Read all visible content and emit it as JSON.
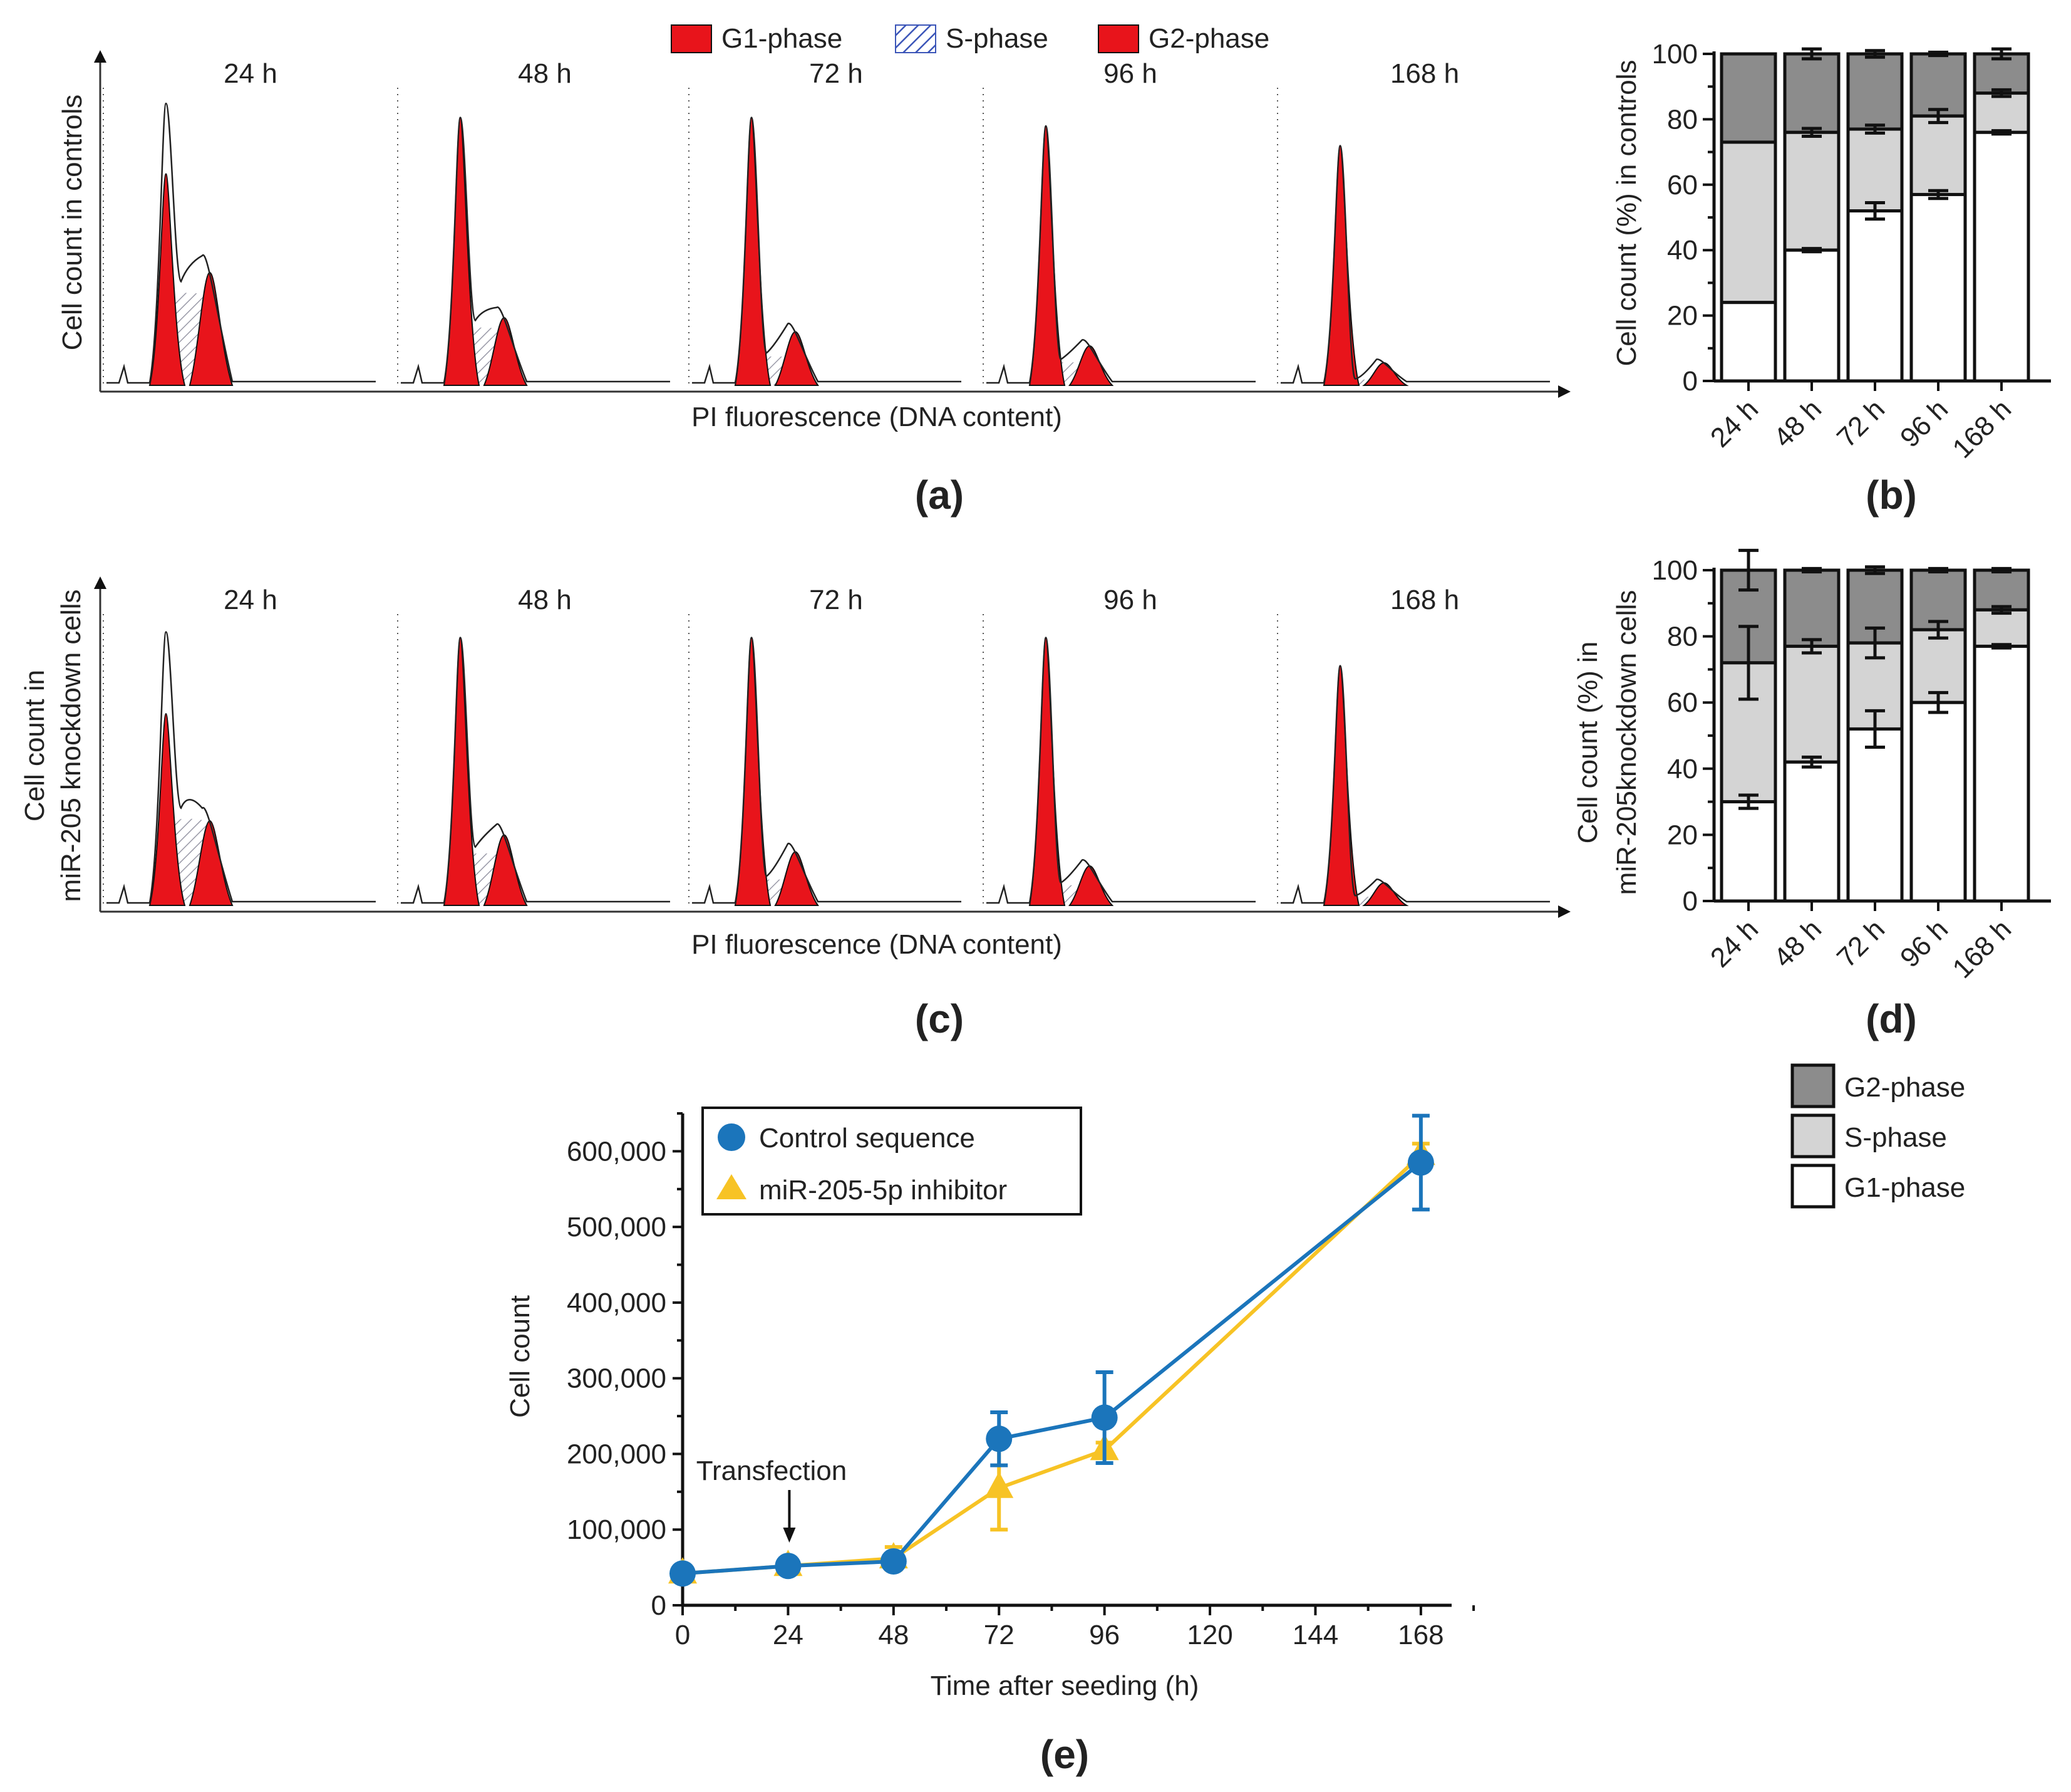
{
  "colors": {
    "g1_red": "#e8141b",
    "s_hatch": "#3b55b8",
    "g2_dark": "#8c8c8c",
    "s_light": "#d4d4d4",
    "g1_white": "#ffffff",
    "control_blue": "#1b75bb",
    "inhibitor_yellow": "#f7c325"
  },
  "histo_legend": {
    "g1": "G1-phase",
    "s": "S-phase",
    "g2": "G2-phase"
  },
  "boxed_legend": {
    "g2": "G2-phase",
    "s": "S-phase",
    "g1": "G1-phase"
  },
  "panels": {
    "a": "(a)",
    "b": "(b)",
    "c": "(c)",
    "d": "(d)",
    "e": "(e)"
  },
  "chart_data": [
    {
      "id": "a",
      "type": "histogram",
      "ylabel": "Cell count in controls",
      "xlabel": "PI fluorescence (DNA content)",
      "subplots": [
        {
          "label": "24 h",
          "g1_peak": 0.75,
          "s_level": 0.32,
          "g2_peak": 0.4,
          "total_peak": 1.0
        },
        {
          "label": "48 h",
          "g1_peak": 0.95,
          "s_level": 0.2,
          "g2_peak": 0.24,
          "total_peak": 0.95
        },
        {
          "label": "72 h",
          "g1_peak": 0.95,
          "s_level": 0.1,
          "g2_peak": 0.19,
          "total_peak": 0.95
        },
        {
          "label": "96 h",
          "g1_peak": 0.92,
          "s_level": 0.08,
          "g2_peak": 0.14,
          "total_peak": 0.92
        },
        {
          "label": "168 h",
          "g1_peak": 0.85,
          "s_level": 0.02,
          "g2_peak": 0.08,
          "total_peak": 0.85
        }
      ]
    },
    {
      "id": "b",
      "type": "stacked-bar",
      "ylabel": "Cell count (%) in controls",
      "categories": [
        "24 h",
        "48 h",
        "72 h",
        "96 h",
        "168 h"
      ],
      "ylim": [
        0,
        100
      ],
      "yticks": [
        "0",
        "20",
        "40",
        "60",
        "80",
        "100"
      ],
      "cumulative_g1": [
        24,
        40,
        52,
        57,
        76
      ],
      "cumulative_s": [
        73,
        76,
        77,
        81,
        88
      ],
      "total": [
        100,
        100,
        100,
        100,
        100
      ],
      "err_g1": [
        0,
        0.5,
        2.5,
        1.2,
        0.5
      ],
      "err_s": [
        0,
        1.2,
        1.2,
        2.0,
        1.0
      ],
      "err_total": [
        0,
        1.5,
        1.0,
        0.5,
        1.5
      ]
    },
    {
      "id": "c",
      "type": "histogram",
      "ylabel_line1": "Cell count in",
      "ylabel_line2": "miR-205 knockdown cells",
      "xlabel": "PI fluorescence (DNA content)",
      "subplots": [
        {
          "label": "24 h",
          "g1_peak": 0.68,
          "s_level": 0.3,
          "g2_peak": 0.3,
          "total_peak": 0.97
        },
        {
          "label": "48 h",
          "g1_peak": 0.95,
          "s_level": 0.18,
          "g2_peak": 0.25,
          "total_peak": 0.95
        },
        {
          "label": "72 h",
          "g1_peak": 0.95,
          "s_level": 0.09,
          "g2_peak": 0.19,
          "total_peak": 0.95
        },
        {
          "label": "96 h",
          "g1_peak": 0.95,
          "s_level": 0.07,
          "g2_peak": 0.14,
          "total_peak": 0.95
        },
        {
          "label": "168 h",
          "g1_peak": 0.85,
          "s_level": 0.03,
          "g2_peak": 0.08,
          "total_peak": 0.85
        }
      ]
    },
    {
      "id": "d",
      "type": "stacked-bar",
      "ylabel_line1": "Cell count (%) in",
      "ylabel_line2": "miR-205knockdown cells",
      "categories": [
        "24 h",
        "48 h",
        "72 h",
        "96 h",
        "168 h"
      ],
      "ylim": [
        0,
        100
      ],
      "yticks": [
        "0",
        "20",
        "40",
        "60",
        "80",
        "100"
      ],
      "cumulative_g1": [
        30,
        42,
        52,
        60,
        77
      ],
      "cumulative_s": [
        72,
        77,
        78,
        82,
        88
      ],
      "total": [
        100,
        100,
        100,
        100,
        100
      ],
      "err_g1": [
        2.0,
        1.5,
        5.5,
        3.0,
        0.5
      ],
      "err_s": [
        11.0,
        2.0,
        4.5,
        2.5,
        1.0
      ],
      "err_total": [
        6.0,
        0.5,
        1.0,
        0.5,
        0.5
      ]
    },
    {
      "id": "e",
      "type": "line",
      "xlabel": "Time after seeding (h)",
      "ylabel": "Cell count",
      "xlim": [
        0,
        175
      ],
      "ylim": [
        0,
        650000
      ],
      "xticks": [
        "0",
        "24",
        "48",
        "72",
        "96",
        "120",
        "144",
        "168"
      ],
      "xtick_values": [
        0,
        24,
        48,
        72,
        96,
        120,
        144,
        168
      ],
      "yticks": [
        "0",
        "100,000",
        "200,000",
        "300,000",
        "400,000",
        "500,000",
        "600,000"
      ],
      "ytick_values": [
        0,
        100000,
        200000,
        300000,
        400000,
        500000,
        600000
      ],
      "annotation": "Transfection",
      "annotation_x": 24,
      "series": [
        {
          "name": "Control sequence",
          "x": [
            0,
            24,
            48,
            72,
            96,
            168
          ],
          "y": [
            42000,
            52000,
            58000,
            220000,
            248000,
            585000
          ],
          "err": [
            0,
            5000,
            4000,
            35000,
            60000,
            62000
          ]
        },
        {
          "name": "miR-205-5p inhibitor",
          "x": [
            0,
            24,
            48,
            72,
            96,
            168
          ],
          "y": [
            42000,
            52000,
            62000,
            155000,
            205000,
            595000
          ],
          "err": [
            0,
            4000,
            15000,
            55000,
            10000,
            15000
          ]
        }
      ]
    }
  ]
}
